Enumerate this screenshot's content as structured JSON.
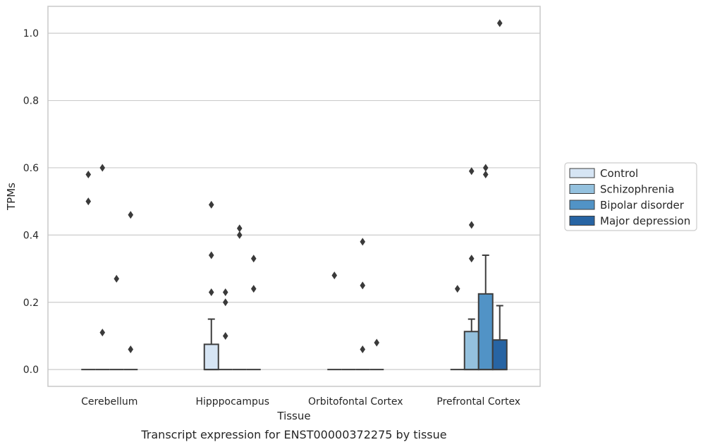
{
  "caption": "Transcript expression for ENST00000372275 by tissue",
  "colors": {
    "Control": "#d6e5f4",
    "Schizophrenia": "#94c1de",
    "Bipolar disorder": "#5193c6",
    "Major depression": "#2764a3",
    "edge": "#3d3d3d",
    "grid": "#cccccc",
    "frame": "#c8c8c8"
  },
  "chart_data": {
    "type": "box",
    "xlabel": "Tissue",
    "ylabel": "TPMs",
    "ylim": [
      -0.05,
      1.08
    ],
    "yticks": [
      0.0,
      0.2,
      0.4,
      0.6,
      0.8,
      1.0
    ],
    "ytick_labels": [
      "0.0",
      "0.2",
      "0.4",
      "0.6",
      "0.8",
      "1.0"
    ],
    "grid": "horizontal",
    "legend_position": "right",
    "categories": [
      "Cerebellum",
      "Hipppocampus",
      "Orbitofontal Cortex",
      "Prefrontal Cortex"
    ],
    "series": [
      {
        "name": "Control",
        "boxes": [
          {
            "q1": 0,
            "median": 0,
            "q3": 0,
            "whisker_low": 0,
            "whisker_high": 0,
            "outliers": [
              0.5,
              0.58
            ]
          },
          {
            "q1": 0,
            "median": 0,
            "q3": 0.075,
            "whisker_low": 0,
            "whisker_high": 0.15,
            "outliers": [
              0.23,
              0.34,
              0.49
            ]
          },
          {
            "q1": 0,
            "median": 0,
            "q3": 0,
            "whisker_low": 0,
            "whisker_high": 0,
            "outliers": [
              0.28
            ]
          },
          {
            "q1": 0,
            "median": 0,
            "q3": 0,
            "whisker_low": 0,
            "whisker_high": 0,
            "outliers": [
              0.24
            ]
          }
        ]
      },
      {
        "name": "Schizophrenia",
        "boxes": [
          {
            "q1": 0,
            "median": 0,
            "q3": 0,
            "whisker_low": 0,
            "whisker_high": 0,
            "outliers": [
              0.11,
              0.6
            ]
          },
          {
            "q1": 0,
            "median": 0,
            "q3": 0,
            "whisker_low": 0,
            "whisker_high": 0,
            "outliers": [
              0.1,
              0.2,
              0.23
            ]
          },
          {
            "q1": 0,
            "median": 0,
            "q3": 0,
            "whisker_low": 0,
            "whisker_high": 0,
            "outliers": []
          },
          {
            "q1": 0,
            "median": 0,
            "q3": 0.113,
            "whisker_low": 0,
            "whisker_high": 0.15,
            "outliers": [
              0.33,
              0.43,
              0.59
            ]
          }
        ]
      },
      {
        "name": "Bipolar disorder",
        "boxes": [
          {
            "q1": 0,
            "median": 0,
            "q3": 0,
            "whisker_low": 0,
            "whisker_high": 0,
            "outliers": [
              0.27
            ]
          },
          {
            "q1": 0,
            "median": 0,
            "q3": 0,
            "whisker_low": 0,
            "whisker_high": 0,
            "outliers": [
              0.4,
              0.42
            ]
          },
          {
            "q1": 0,
            "median": 0,
            "q3": 0,
            "whisker_low": 0,
            "whisker_high": 0,
            "outliers": [
              0.06,
              0.25,
              0.38
            ]
          },
          {
            "q1": 0,
            "median": 0,
            "q3": 0.225,
            "whisker_low": 0,
            "whisker_high": 0.34,
            "outliers": [
              0.58,
              0.6
            ]
          }
        ]
      },
      {
        "name": "Major depression",
        "boxes": [
          {
            "q1": 0,
            "median": 0,
            "q3": 0,
            "whisker_low": 0,
            "whisker_high": 0,
            "outliers": [
              0.06,
              0.46
            ]
          },
          {
            "q1": 0,
            "median": 0,
            "q3": 0,
            "whisker_low": 0,
            "whisker_high": 0,
            "outliers": [
              0.24,
              0.33
            ]
          },
          {
            "q1": 0,
            "median": 0,
            "q3": 0,
            "whisker_low": 0,
            "whisker_high": 0,
            "outliers": [
              0.08
            ]
          },
          {
            "q1": 0,
            "median": 0,
            "q3": 0.088,
            "whisker_low": 0,
            "whisker_high": 0.19,
            "outliers": [
              1.03
            ]
          }
        ]
      }
    ]
  }
}
